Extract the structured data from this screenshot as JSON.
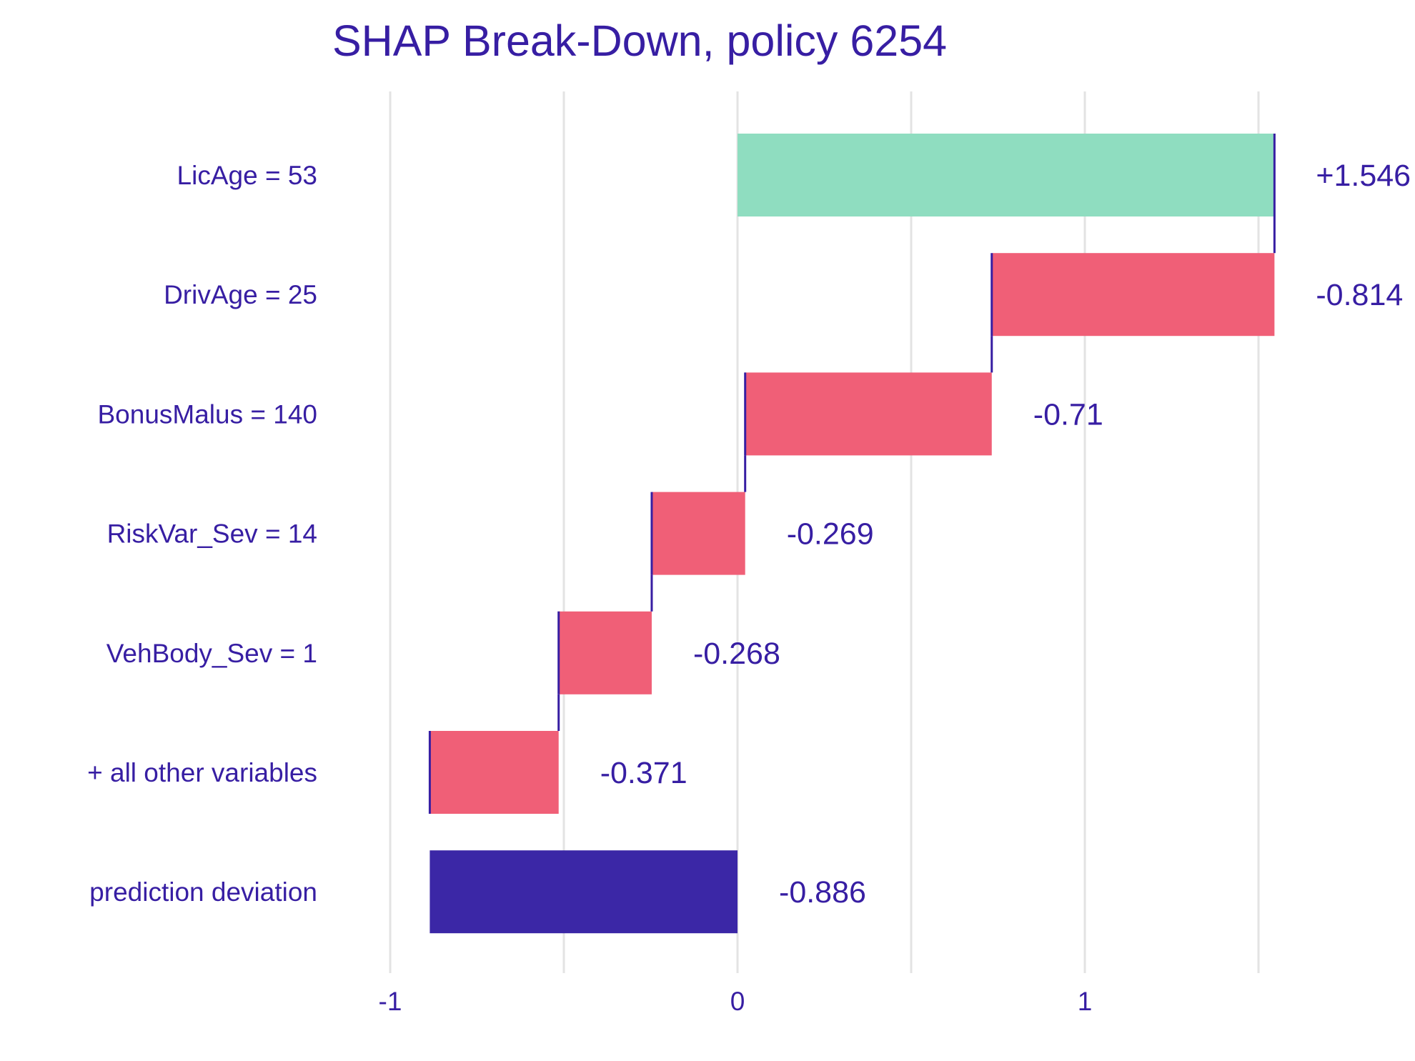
{
  "chart_data": {
    "type": "bar",
    "subtype": "waterfall",
    "title": "SHAP Break-Down, policy 6254",
    "xlabel": "",
    "ylabel": "",
    "xlim": [
      -1.05,
      1.95
    ],
    "x_ticks": [
      -1,
      0,
      1
    ],
    "x_tick_labels": [
      "-1",
      "0",
      "1"
    ],
    "gridlines": [
      -1,
      -0.5,
      0,
      0.5,
      1,
      1.5
    ],
    "grid": true,
    "categories": [
      "LicAge = 53",
      "DrivAge = 25",
      "BonusMalus = 140",
      "RiskVar_Sev = 14",
      "VehBody_Sev = 1",
      "+ all other variables",
      "prediction deviation"
    ],
    "contributions": [
      1.546,
      -0.814,
      -0.71,
      -0.269,
      -0.268,
      -0.371,
      -0.886
    ],
    "value_labels": [
      "+1.546",
      "-0.814",
      "-0.71",
      "-0.269",
      "-0.268",
      "-0.371",
      "-0.886"
    ],
    "is_total": [
      false,
      false,
      false,
      false,
      false,
      false,
      true
    ],
    "colors": {
      "positive": "#8FDDC0",
      "negative": "#F05F77",
      "total": "#3B27A6",
      "connector": "#371EA3",
      "text": "#371EA3",
      "grid": "#e3e3e3"
    }
  }
}
